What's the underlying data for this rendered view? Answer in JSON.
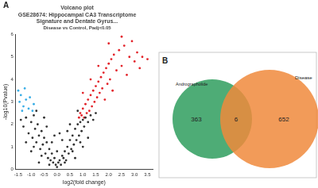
{
  "chart_data": [
    {
      "type": "scatter",
      "annotation": "A",
      "title": [
        "Volcano plot",
        "GSE28674: Hippocampal CA3 Transcriptome",
        "Signature and Dentate Gyrus..."
      ],
      "subtitle": "Disease vs Control, Padj<0.05",
      "x_label": "log2(fold change)",
      "y_label": "-log10(Pvalue)",
      "xlim": [
        -1.6,
        3.7
      ],
      "xticks": [
        -1.5,
        {
          "value": -1,
          "label": "-1.0"
        },
        -0.5,
        {
          "value": 0,
          "label": "0.0"
        },
        0.5,
        {
          "value": 1,
          "label": "1.0"
        },
        1.5,
        {
          "value": 2,
          "label": "2.0"
        },
        2.5,
        {
          "value": 3,
          "label": "3.0"
        },
        3.5
      ],
      "ylim": [
        0,
        6
      ],
      "yticks": [
        0,
        1,
        2,
        3,
        4,
        5,
        6
      ],
      "grid": false,
      "series": [
        {
          "color": "#333333",
          "x": [
            -1.4,
            -1.3,
            -1.2,
            -1.1,
            -1.0,
            -0.95,
            -0.9,
            -0.85,
            -0.8,
            -0.75,
            -0.7,
            -0.65,
            -0.6,
            -0.55,
            -0.5,
            -0.45,
            -0.4,
            -0.35,
            -0.3,
            -0.25,
            -0.2,
            -0.15,
            -0.1,
            -0.05,
            0.0,
            0.05,
            0.1,
            0.15,
            0.2,
            0.25,
            0.3,
            0.35,
            0.4,
            0.45,
            0.5,
            0.55,
            0.6,
            0.65,
            0.7,
            0.75,
            0.8,
            0.85,
            0.9,
            0.95,
            1.0,
            1.05,
            1.1,
            1.2,
            1.3,
            1.4,
            1.5,
            -0.6,
            -0.3,
            0.3,
            0.6,
            -0.9,
            0.9,
            -0.5,
            0.5,
            -0.2,
            0.2,
            0.0,
            -0.7,
            0.7,
            -1.0,
            1.0,
            -0.4,
            0.4,
            -0.1,
            0.1,
            0.8,
            -0.8,
            1.2,
            -1.2
          ],
          "values": [
            2.2,
            1.9,
            2.3,
            1.6,
            2.1,
            1.4,
            2.4,
            1.8,
            1.2,
            2.0,
            1.5,
            0.9,
            1.7,
            1.1,
            1.4,
            0.7,
            1.2,
            0.5,
            0.9,
            0.4,
            0.7,
            0.3,
            0.5,
            0.2,
            0.1,
            0.3,
            0.4,
            0.2,
            0.6,
            0.5,
            0.8,
            0.4,
            1.0,
            0.7,
            1.3,
            0.9,
            1.5,
            1.1,
            1.8,
            1.3,
            2.0,
            1.5,
            2.1,
            1.7,
            2.2,
            1.9,
            2.3,
            2.1,
            2.4,
            2.2,
            2.5,
            0.6,
            0.2,
            0.3,
            0.8,
            1.0,
            1.2,
            2.3,
            2.0,
            1.2,
            1.3,
            0.8,
            0.3,
            0.5,
            0.8,
            1.0,
            1.9,
            1.7,
            1.5,
            1.6,
            2.6,
            2.6,
            1.4,
            1.2
          ]
        },
        {
          "color": "#e3242b",
          "x": [
            0.85,
            0.9,
            0.95,
            1.0,
            1.05,
            1.1,
            1.15,
            1.2,
            1.25,
            1.3,
            1.35,
            1.4,
            1.45,
            1.5,
            1.55,
            1.6,
            1.65,
            1.7,
            1.75,
            1.8,
            1.85,
            1.9,
            1.95,
            2.0,
            2.05,
            2.1,
            2.15,
            2.2,
            2.3,
            2.4,
            2.5,
            2.6,
            2.7,
            2.8,
            2.9,
            3.0,
            3.1,
            3.2,
            3.3,
            3.5,
            1.0,
            1.3,
            1.6,
            2.0,
            2.5
          ],
          "values": [
            2.3,
            2.5,
            2.4,
            2.7,
            2.3,
            2.9,
            2.5,
            3.1,
            2.6,
            3.3,
            2.8,
            3.5,
            3.0,
            3.7,
            3.2,
            3.9,
            3.4,
            4.1,
            3.6,
            4.3,
            3.1,
            4.5,
            3.8,
            4.7,
            4.0,
            4.9,
            3.5,
            5.1,
            4.4,
            5.3,
            4.6,
            5.5,
            4.2,
            5.0,
            5.7,
            4.8,
            5.2,
            4.5,
            5.0,
            4.9,
            3.4,
            4.0,
            4.6,
            5.6,
            5.9
          ]
        },
        {
          "color": "#3aaee6",
          "x": [
            -1.5,
            -1.45,
            -1.4,
            -1.3,
            -1.25,
            -1.2,
            -1.1,
            -1.05,
            -0.95,
            -0.9,
            -1.35
          ],
          "values": [
            3.5,
            3.0,
            3.3,
            2.8,
            3.6,
            3.1,
            2.7,
            3.2,
            2.6,
            2.9,
            2.6
          ]
        }
      ]
    },
    {
      "type": "venn",
      "annotation": "B",
      "sets": [
        "Andrographolide",
        "Disease"
      ],
      "colors": [
        "#2f9e5e",
        "#f0893c"
      ],
      "values": [
        363,
        6,
        652
      ]
    }
  ]
}
